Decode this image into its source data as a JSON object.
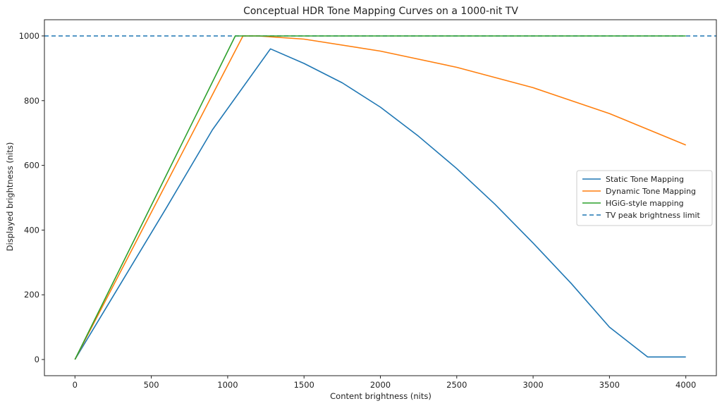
{
  "chart_data": {
    "type": "line",
    "title": "Conceptual HDR Tone Mapping Curves on a 1000-nit TV",
    "xlabel": "Content brightness (nits)",
    "ylabel": "Displayed brightness (nits)",
    "xlim": [
      -200,
      4200
    ],
    "ylim": [
      -50,
      1050
    ],
    "xticks": [
      0,
      500,
      1000,
      1500,
      2000,
      2500,
      3000,
      3500,
      4000
    ],
    "yticks": [
      0,
      200,
      400,
      600,
      800,
      1000
    ],
    "grid": false,
    "legend_position": "center-right",
    "series": [
      {
        "name": "Static Tone Mapping",
        "color": "#1f77b4",
        "style": "solid",
        "x": [
          0,
          300,
          600,
          900,
          1280,
          1500,
          1750,
          2000,
          2250,
          2500,
          2750,
          3000,
          3250,
          3500,
          3750,
          4000
        ],
        "y": [
          0,
          235,
          470,
          710,
          960,
          915,
          855,
          780,
          690,
          590,
          480,
          360,
          235,
          100,
          -35,
          8
        ]
      },
      {
        "name": "Dynamic Tone Mapping",
        "color": "#ff7f0e",
        "style": "solid",
        "x": [
          0,
          550,
          1100,
          1200,
          1500,
          2000,
          2500,
          3000,
          3500,
          4000
        ],
        "y": [
          0,
          500,
          1000,
          1000,
          990,
          953,
          903,
          840,
          760,
          663
        ]
      },
      {
        "name": "HGiG-style mapping",
        "color": "#2ca02c",
        "style": "solid",
        "x": [
          0,
          1050,
          4000
        ],
        "y": [
          0,
          1000,
          1000
        ]
      },
      {
        "name": "TV peak brightness limit",
        "color": "#1f77b4",
        "style": "dashed",
        "x": [
          -200,
          4200
        ],
        "y": [
          1000,
          1000
        ]
      }
    ]
  }
}
